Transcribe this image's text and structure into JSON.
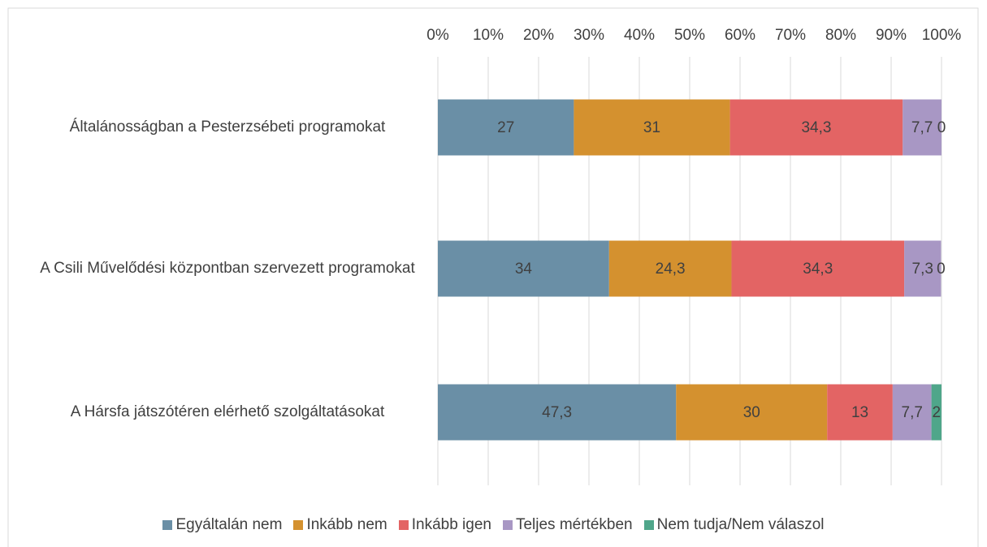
{
  "chart_data": {
    "type": "stacked_bar_horizontal",
    "categories": [
      "Általánosságban a Pesterzsébeti programokat",
      "A Csili Művelődési központban szervezett programokat",
      "A Hársfa játszótéren elérhető szolgáltatásokat"
    ],
    "series": [
      {
        "name": "Egyáltalán nem",
        "color": "#6a8fa6",
        "values": [
          27,
          34,
          47.3
        ],
        "value_labels": [
          "27",
          "34",
          "47,3"
        ]
      },
      {
        "name": "Inkább nem",
        "color": "#d4912f",
        "values": [
          31,
          24.3,
          30
        ],
        "value_labels": [
          "31",
          "24,3",
          "30"
        ]
      },
      {
        "name": "Inkább igen",
        "color": "#e36464",
        "values": [
          34.3,
          34.3,
          13
        ],
        "value_labels": [
          "34,3",
          "34,3",
          "13"
        ]
      },
      {
        "name": "Teljes mértékben",
        "color": "#a897c4",
        "values": [
          7.7,
          7.3,
          7.7
        ],
        "value_labels": [
          "7,7",
          "7,3",
          "7,7"
        ]
      },
      {
        "name": "Nem tudja/Nem válaszol",
        "color": "#4fa68a",
        "values": [
          0,
          0,
          2
        ],
        "value_labels": [
          "0",
          "0",
          "2"
        ]
      }
    ],
    "xlim": [
      0,
      100
    ],
    "xticks": [
      {
        "value": 0,
        "label": "0%"
      },
      {
        "value": 10,
        "label": "10%"
      },
      {
        "value": 20,
        "label": "20%"
      },
      {
        "value": 30,
        "label": "30%"
      },
      {
        "value": 40,
        "label": "40%"
      },
      {
        "value": 50,
        "label": "50%"
      },
      {
        "value": 60,
        "label": "60%"
      },
      {
        "value": 70,
        "label": "70%"
      },
      {
        "value": 80,
        "label": "80%"
      },
      {
        "value": 90,
        "label": "90%"
      },
      {
        "value": 100,
        "label": "100%"
      }
    ],
    "grid": true,
    "legend": "bottom"
  }
}
